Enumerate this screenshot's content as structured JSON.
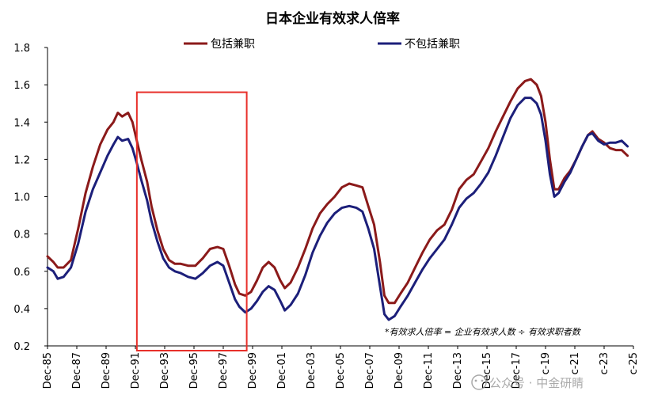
{
  "chart_data": {
    "type": "line",
    "title": "日本企业有效求人倍率",
    "ylim": [
      0.2,
      1.8
    ],
    "yticks": [
      "1.8",
      "1.6",
      "1.4",
      "1.2",
      "1.0",
      "0.8",
      "0.6",
      "0.4",
      "0.2"
    ],
    "xticks": [
      "Dec-85",
      "Dec-87",
      "Dec-89",
      "Dec-91",
      "Dec-93",
      "Dec-95",
      "Dec-97",
      "Dec-99",
      "Dec-01",
      "Dec-03",
      "Dec-05",
      "Dec-07",
      "Dec-09",
      "Dec-11",
      "Dec-13",
      "Dec-15",
      "Dec-17",
      "c-19",
      "c-21",
      "c-23",
      "c-25"
    ],
    "xlim": [
      1985.9,
      2025.9
    ],
    "legend_position": "top",
    "note": "*有效求人倍率 = 企业有效求人数 ÷ 有效求职者数",
    "highlight_box": {
      "x_from": 1992.0,
      "x_to": 1999.5,
      "y_from": 0.2,
      "y_to": 1.56,
      "color": "#e8302a"
    },
    "series": [
      {
        "name": "包括兼职",
        "color": "#8b1a1a",
        "points": [
          [
            1985.9,
            0.68
          ],
          [
            1986.3,
            0.65
          ],
          [
            1986.6,
            0.62
          ],
          [
            1987.0,
            0.62
          ],
          [
            1987.5,
            0.66
          ],
          [
            1988.0,
            0.83
          ],
          [
            1988.5,
            1.02
          ],
          [
            1989.0,
            1.16
          ],
          [
            1989.5,
            1.28
          ],
          [
            1990.0,
            1.36
          ],
          [
            1990.4,
            1.4
          ],
          [
            1990.7,
            1.45
          ],
          [
            1991.0,
            1.43
          ],
          [
            1991.4,
            1.45
          ],
          [
            1991.7,
            1.4
          ],
          [
            1992.0,
            1.3
          ],
          [
            1992.3,
            1.2
          ],
          [
            1992.7,
            1.08
          ],
          [
            1993.0,
            0.95
          ],
          [
            1993.4,
            0.82
          ],
          [
            1993.8,
            0.72
          ],
          [
            1994.2,
            0.66
          ],
          [
            1994.6,
            0.64
          ],
          [
            1995.0,
            0.64
          ],
          [
            1995.5,
            0.63
          ],
          [
            1996.0,
            0.63
          ],
          [
            1996.5,
            0.67
          ],
          [
            1997.0,
            0.72
          ],
          [
            1997.5,
            0.73
          ],
          [
            1997.9,
            0.72
          ],
          [
            1998.3,
            0.63
          ],
          [
            1998.7,
            0.53
          ],
          [
            1999.0,
            0.48
          ],
          [
            1999.4,
            0.47
          ],
          [
            1999.8,
            0.49
          ],
          [
            2000.2,
            0.55
          ],
          [
            2000.6,
            0.62
          ],
          [
            2001.0,
            0.65
          ],
          [
            2001.4,
            0.62
          ],
          [
            2001.8,
            0.55
          ],
          [
            2002.1,
            0.51
          ],
          [
            2002.5,
            0.54
          ],
          [
            2003.0,
            0.62
          ],
          [
            2003.5,
            0.72
          ],
          [
            2004.0,
            0.83
          ],
          [
            2004.5,
            0.91
          ],
          [
            2005.0,
            0.96
          ],
          [
            2005.5,
            1.0
          ],
          [
            2006.0,
            1.05
          ],
          [
            2006.5,
            1.07
          ],
          [
            2007.0,
            1.06
          ],
          [
            2007.4,
            1.05
          ],
          [
            2007.8,
            0.95
          ],
          [
            2008.2,
            0.85
          ],
          [
            2008.6,
            0.65
          ],
          [
            2008.9,
            0.47
          ],
          [
            2009.2,
            0.43
          ],
          [
            2009.6,
            0.43
          ],
          [
            2010.0,
            0.48
          ],
          [
            2010.5,
            0.54
          ],
          [
            2011.0,
            0.62
          ],
          [
            2011.5,
            0.7
          ],
          [
            2012.0,
            0.77
          ],
          [
            2012.5,
            0.82
          ],
          [
            2013.0,
            0.85
          ],
          [
            2013.5,
            0.93
          ],
          [
            2014.0,
            1.04
          ],
          [
            2014.5,
            1.09
          ],
          [
            2015.0,
            1.12
          ],
          [
            2015.5,
            1.19
          ],
          [
            2016.0,
            1.26
          ],
          [
            2016.5,
            1.35
          ],
          [
            2017.0,
            1.43
          ],
          [
            2017.5,
            1.51
          ],
          [
            2018.0,
            1.58
          ],
          [
            2018.5,
            1.62
          ],
          [
            2018.9,
            1.63
          ],
          [
            2019.3,
            1.6
          ],
          [
            2019.6,
            1.54
          ],
          [
            2019.9,
            1.4
          ],
          [
            2020.2,
            1.2
          ],
          [
            2020.5,
            1.04
          ],
          [
            2020.8,
            1.04
          ],
          [
            2021.2,
            1.1
          ],
          [
            2021.6,
            1.14
          ],
          [
            2022.0,
            1.2
          ],
          [
            2022.4,
            1.27
          ],
          [
            2022.8,
            1.33
          ],
          [
            2023.1,
            1.35
          ],
          [
            2023.5,
            1.31
          ],
          [
            2023.9,
            1.29
          ],
          [
            2024.3,
            1.26
          ],
          [
            2024.7,
            1.25
          ],
          [
            2025.1,
            1.25
          ],
          [
            2025.5,
            1.22
          ]
        ]
      },
      {
        "name": "不包括兼职",
        "color": "#1c1f7a",
        "points": [
          [
            1985.9,
            0.62
          ],
          [
            1986.3,
            0.6
          ],
          [
            1986.6,
            0.56
          ],
          [
            1987.0,
            0.57
          ],
          [
            1987.5,
            0.62
          ],
          [
            1988.0,
            0.75
          ],
          [
            1988.5,
            0.92
          ],
          [
            1989.0,
            1.04
          ],
          [
            1989.5,
            1.13
          ],
          [
            1990.0,
            1.22
          ],
          [
            1990.4,
            1.28
          ],
          [
            1990.7,
            1.32
          ],
          [
            1991.0,
            1.3
          ],
          [
            1991.4,
            1.31
          ],
          [
            1991.7,
            1.26
          ],
          [
            1992.0,
            1.18
          ],
          [
            1992.3,
            1.09
          ],
          [
            1992.7,
            0.98
          ],
          [
            1993.0,
            0.87
          ],
          [
            1993.4,
            0.76
          ],
          [
            1993.8,
            0.67
          ],
          [
            1994.2,
            0.62
          ],
          [
            1994.6,
            0.6
          ],
          [
            1995.0,
            0.59
          ],
          [
            1995.5,
            0.57
          ],
          [
            1996.0,
            0.56
          ],
          [
            1996.5,
            0.59
          ],
          [
            1997.0,
            0.63
          ],
          [
            1997.5,
            0.65
          ],
          [
            1997.9,
            0.63
          ],
          [
            1998.3,
            0.54
          ],
          [
            1998.7,
            0.45
          ],
          [
            1999.0,
            0.41
          ],
          [
            1999.4,
            0.38
          ],
          [
            1999.8,
            0.4
          ],
          [
            2000.2,
            0.44
          ],
          [
            2000.6,
            0.49
          ],
          [
            2001.0,
            0.52
          ],
          [
            2001.4,
            0.5
          ],
          [
            2001.8,
            0.44
          ],
          [
            2002.1,
            0.39
          ],
          [
            2002.5,
            0.42
          ],
          [
            2003.0,
            0.48
          ],
          [
            2003.5,
            0.58
          ],
          [
            2004.0,
            0.7
          ],
          [
            2004.5,
            0.79
          ],
          [
            2005.0,
            0.86
          ],
          [
            2005.5,
            0.91
          ],
          [
            2006.0,
            0.94
          ],
          [
            2006.5,
            0.95
          ],
          [
            2007.0,
            0.94
          ],
          [
            2007.4,
            0.92
          ],
          [
            2007.8,
            0.83
          ],
          [
            2008.2,
            0.72
          ],
          [
            2008.6,
            0.52
          ],
          [
            2008.9,
            0.37
          ],
          [
            2009.2,
            0.34
          ],
          [
            2009.6,
            0.36
          ],
          [
            2010.0,
            0.41
          ],
          [
            2010.5,
            0.47
          ],
          [
            2011.0,
            0.54
          ],
          [
            2011.5,
            0.61
          ],
          [
            2012.0,
            0.67
          ],
          [
            2012.5,
            0.72
          ],
          [
            2013.0,
            0.77
          ],
          [
            2013.5,
            0.85
          ],
          [
            2014.0,
            0.94
          ],
          [
            2014.5,
            0.99
          ],
          [
            2015.0,
            1.02
          ],
          [
            2015.5,
            1.07
          ],
          [
            2016.0,
            1.13
          ],
          [
            2016.5,
            1.22
          ],
          [
            2017.0,
            1.32
          ],
          [
            2017.5,
            1.42
          ],
          [
            2018.0,
            1.49
          ],
          [
            2018.5,
            1.53
          ],
          [
            2018.9,
            1.53
          ],
          [
            2019.3,
            1.5
          ],
          [
            2019.6,
            1.44
          ],
          [
            2019.9,
            1.3
          ],
          [
            2020.2,
            1.12
          ],
          [
            2020.5,
            1.0
          ],
          [
            2020.8,
            1.02
          ],
          [
            2021.2,
            1.08
          ],
          [
            2021.6,
            1.13
          ],
          [
            2022.0,
            1.2
          ],
          [
            2022.4,
            1.27
          ],
          [
            2022.8,
            1.33
          ],
          [
            2023.1,
            1.34
          ],
          [
            2023.5,
            1.3
          ],
          [
            2023.9,
            1.28
          ],
          [
            2024.3,
            1.29
          ],
          [
            2024.7,
            1.29
          ],
          [
            2025.1,
            1.3
          ],
          [
            2025.5,
            1.27
          ]
        ]
      }
    ]
  },
  "watermark": "公众号 · 中金研睛"
}
